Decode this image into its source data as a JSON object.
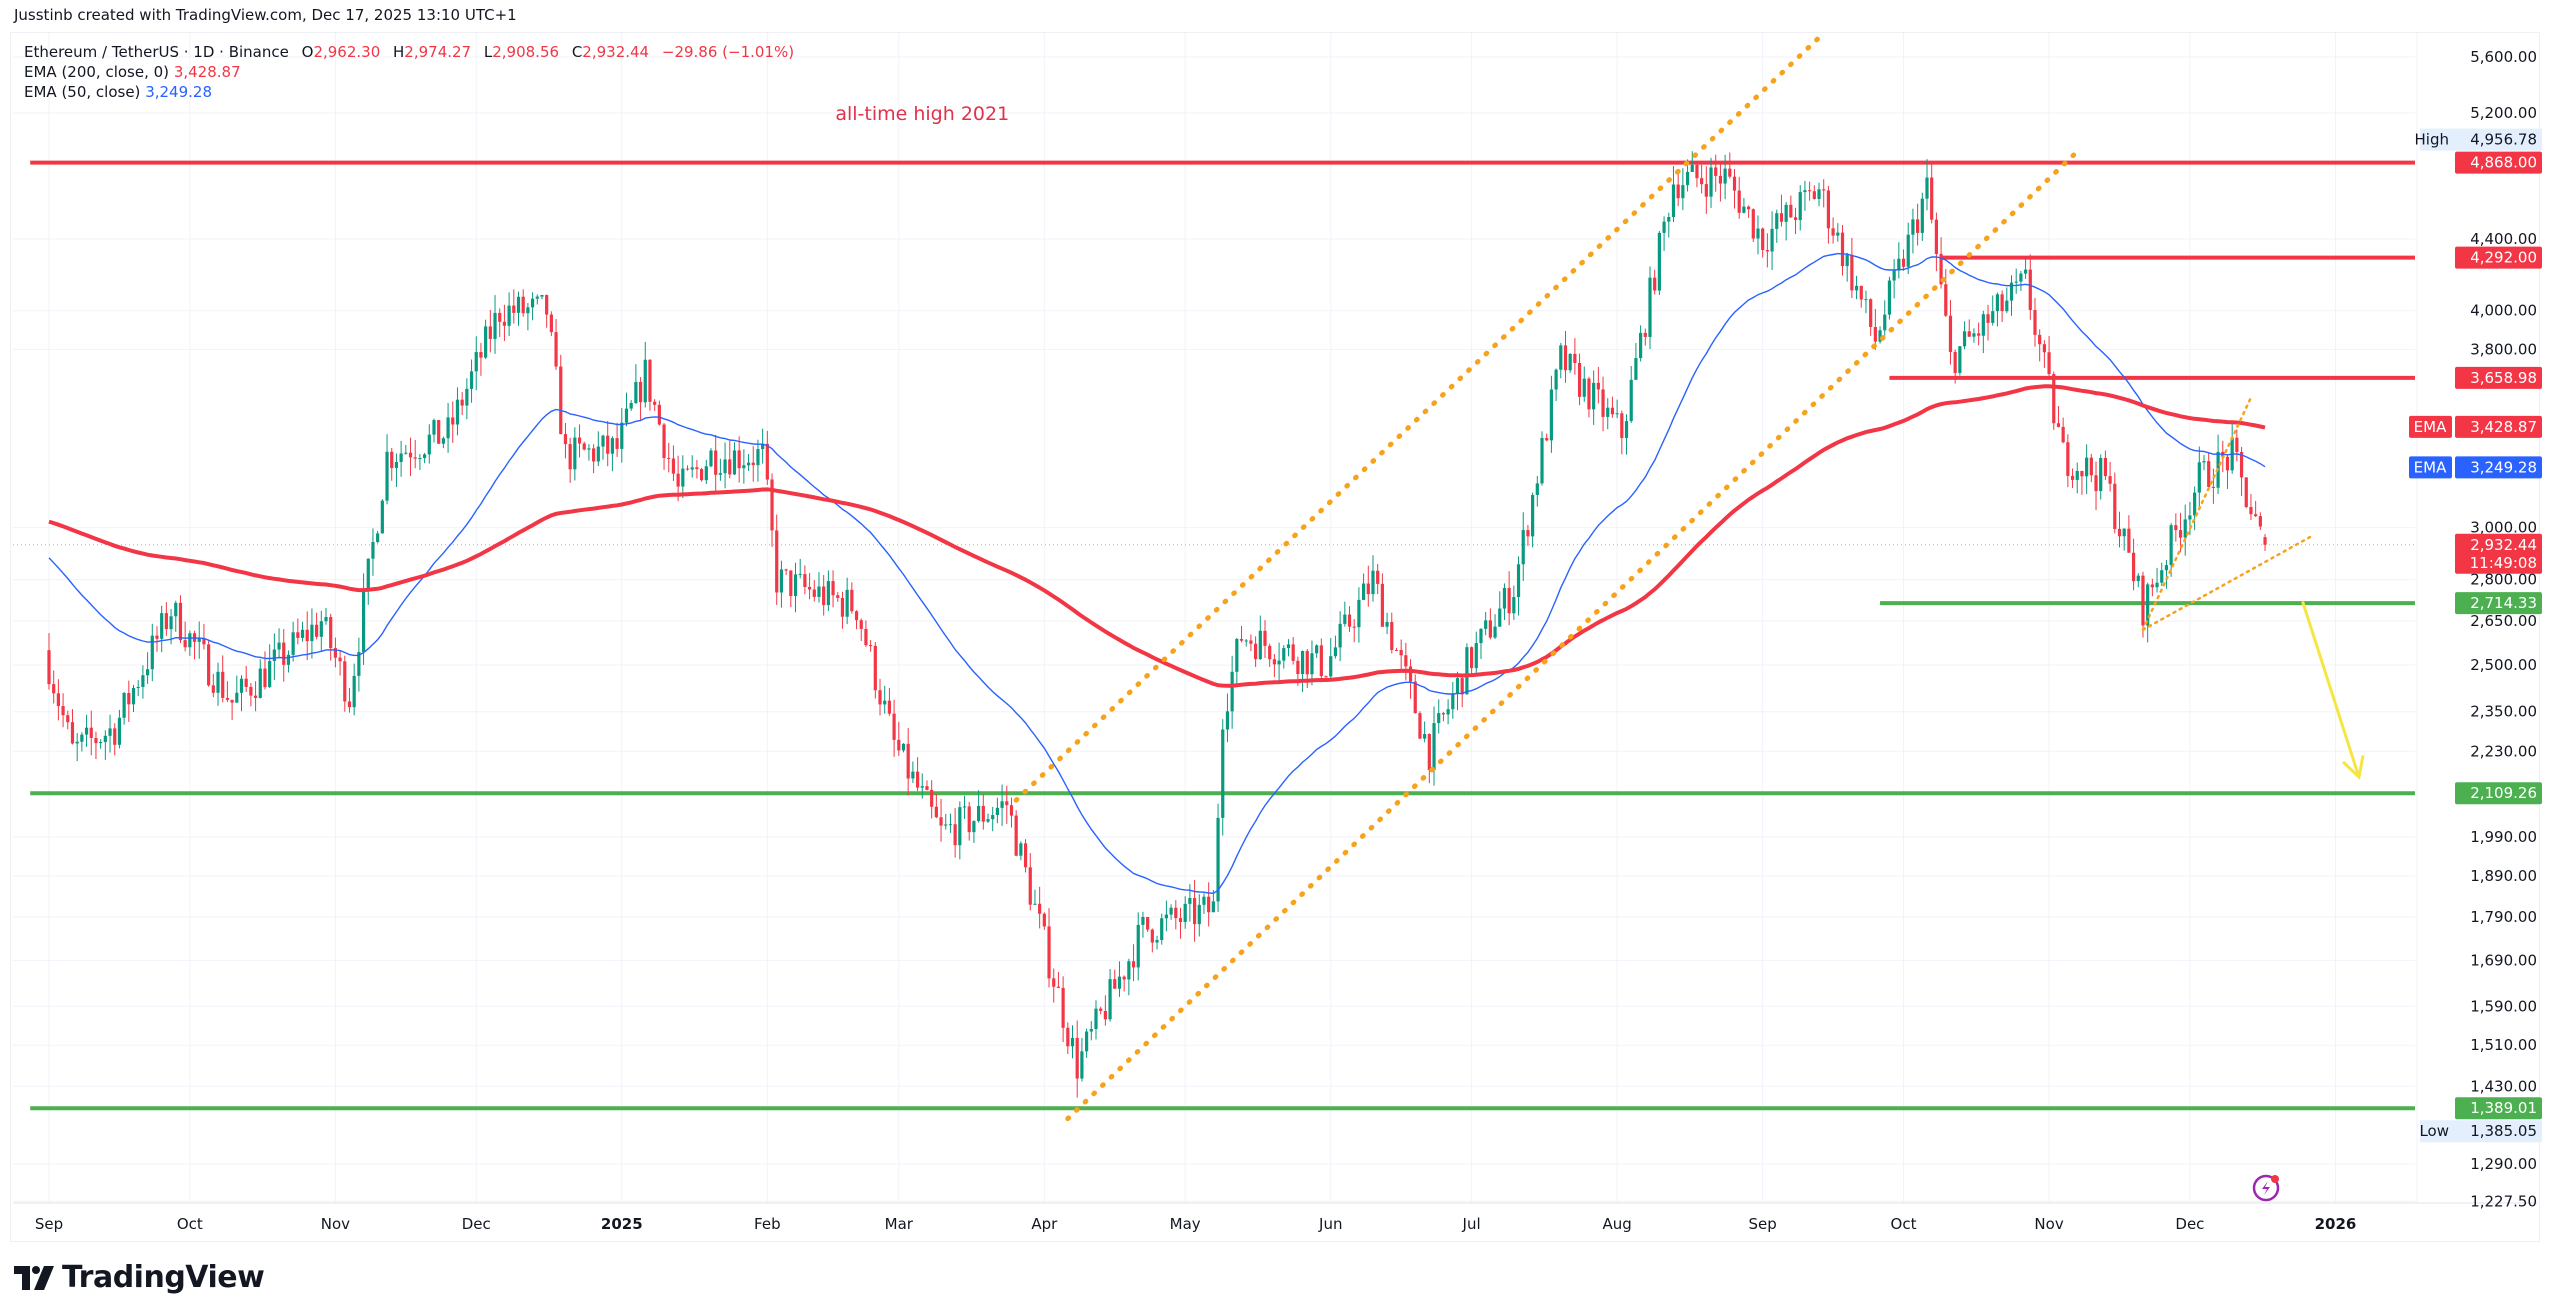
{
  "credit": "Jusstinb created with TradingView.com, Dec 17, 2025 13:10 UTC+1",
  "legend": {
    "symbol": "Ethereum / TetherUS · 1D · Binance",
    "o_label": "O",
    "o": "2,962.30",
    "h_label": "H",
    "h": "2,974.27",
    "l_label": "L",
    "l": "2,908.56",
    "c_label": "C",
    "c": "2,932.44",
    "change": "−29.86 (−1.01%)",
    "ema200_label": "EMA (200, close, 0)",
    "ema200_value": "3,428.87",
    "ema50_label": "EMA (50, close)",
    "ema50_value": "3,249.28"
  },
  "logo_text": "TradingView",
  "colors": {
    "up": "#089981",
    "down": "#f23645",
    "ema200": "#f23645",
    "ema50": "#2962ff",
    "res": "#f23645",
    "sup": "#4caf50",
    "channel": "#f7a21b",
    "arrow": "#f5e642"
  },
  "chart_data": {
    "type": "candlestick",
    "title": "Ethereum / TetherUS · 1D · Binance",
    "scale": "log",
    "ylim": [
      1227.5,
      5700
    ],
    "xlim": [
      "2024-08-28",
      "2026-02-01"
    ],
    "grid": true,
    "price_ticks": [
      "5,600.00",
      "5,200.00",
      "4,400.00",
      "4,000.00",
      "3,800.00",
      "3,000.00",
      "2,800.00",
      "2,650.00",
      "2,500.00",
      "2,350.00",
      "2,230.00",
      "1,990.00",
      "1,890.00",
      "1,790.00",
      "1,690.00",
      "1,590.00",
      "1,510.00",
      "1,430.00",
      "1,290.00",
      "1,227.50"
    ],
    "time_ticks": [
      {
        "label": "Sep",
        "date": "2024-09-01"
      },
      {
        "label": "Oct",
        "date": "2024-10-01"
      },
      {
        "label": "Nov",
        "date": "2024-11-01"
      },
      {
        "label": "Dec",
        "date": "2024-12-01"
      },
      {
        "label": "2025",
        "date": "2025-01-01",
        "bold": true
      },
      {
        "label": "Feb",
        "date": "2025-02-01"
      },
      {
        "label": "Mar",
        "date": "2025-03-01"
      },
      {
        "label": "Apr",
        "date": "2025-04-01"
      },
      {
        "label": "May",
        "date": "2025-05-01"
      },
      {
        "label": "Jun",
        "date": "2025-06-01"
      },
      {
        "label": "Jul",
        "date": "2025-07-01"
      },
      {
        "label": "Aug",
        "date": "2025-08-01"
      },
      {
        "label": "Sep",
        "date": "2025-09-01"
      },
      {
        "label": "Oct",
        "date": "2025-10-01"
      },
      {
        "label": "Nov",
        "date": "2025-11-01"
      },
      {
        "label": "Dec",
        "date": "2025-12-01"
      },
      {
        "label": "2026",
        "date": "2026-01-01",
        "bold": true
      }
    ],
    "close_anchors": [
      [
        "2024-09-01",
        2500
      ],
      [
        "2024-09-06",
        2230
      ],
      [
        "2024-09-15",
        2300
      ],
      [
        "2024-09-27",
        2690
      ],
      [
        "2024-10-10",
        2380
      ],
      [
        "2024-10-29",
        2650
      ],
      [
        "2024-11-04",
        2400
      ],
      [
        "2024-11-12",
        3300
      ],
      [
        "2024-11-25",
        3400
      ],
      [
        "2024-12-06",
        4000
      ],
      [
        "2024-12-16",
        4000
      ],
      [
        "2024-12-20",
        3300
      ],
      [
        "2024-12-31",
        3330
      ],
      [
        "2025-01-06",
        3680
      ],
      [
        "2025-01-13",
        3150
      ],
      [
        "2025-01-20",
        3300
      ],
      [
        "2025-01-31",
        3300
      ],
      [
        "2025-02-03",
        2800
      ],
      [
        "2025-02-20",
        2700
      ],
      [
        "2025-02-28",
        2250
      ],
      [
        "2025-03-10",
        2000
      ],
      [
        "2025-03-24",
        2080
      ],
      [
        "2025-04-08",
        1470
      ],
      [
        "2025-04-22",
        1760
      ],
      [
        "2025-05-07",
        1810
      ],
      [
        "2025-05-09",
        2350
      ],
      [
        "2025-05-13",
        2600
      ],
      [
        "2025-05-31",
        2500
      ],
      [
        "2025-06-10",
        2800
      ],
      [
        "2025-06-22",
        2230
      ],
      [
        "2025-06-30",
        2500
      ],
      [
        "2025-07-10",
        2770
      ],
      [
        "2025-07-20",
        3750
      ],
      [
        "2025-08-02",
        3400
      ],
      [
        "2025-08-13",
        4750
      ],
      [
        "2025-08-24",
        4780
      ],
      [
        "2025-09-01",
        4400
      ],
      [
        "2025-09-13",
        4700
      ],
      [
        "2025-09-25",
        3850
      ],
      [
        "2025-10-06",
        4700
      ],
      [
        "2025-10-11",
        3750
      ],
      [
        "2025-10-27",
        4150
      ],
      [
        "2025-11-04",
        3300
      ],
      [
        "2025-11-13",
        3200
      ],
      [
        "2025-11-21",
        2700
      ],
      [
        "2025-12-03",
        3200
      ],
      [
        "2025-12-10",
        3300
      ],
      [
        "2025-12-16",
        2962.3
      ]
    ],
    "last_candle": {
      "date": "2025-12-17",
      "open": 2962.3,
      "high": 2974.27,
      "low": 2908.56,
      "close": 2932.44
    },
    "ema_seeds": {
      "ema200": 3030,
      "ema50": 2900
    },
    "series": [
      {
        "name": "EMA (200, close, 0)",
        "value": 3428.87
      },
      {
        "name": "EMA (50, close)",
        "value": 3249.28
      }
    ],
    "levels": [
      {
        "price": 4868.0,
        "label": "4,868.00",
        "kind": "res",
        "from": "2024-08-28"
      },
      {
        "price": 4292.0,
        "label": "4,292.00",
        "kind": "res",
        "from": "2025-10-09"
      },
      {
        "price": 3658.98,
        "label": "3,658.98",
        "kind": "res",
        "from": "2025-09-28"
      },
      {
        "price": 2714.33,
        "label": "2,714.33",
        "kind": "sup",
        "from": "2025-09-26"
      },
      {
        "price": 2109.26,
        "label": "2,109.26",
        "kind": "sup",
        "from": "2024-08-28"
      },
      {
        "price": 1389.01,
        "label": "1,389.01",
        "kind": "sup",
        "from": "2024-08-28"
      }
    ],
    "high_marker": {
      "label": "High",
      "value": "4,956.78",
      "price": 4956.78
    },
    "low_marker": {
      "label": "Low",
      "value": "1,385.05",
      "price": 1385.05
    },
    "ema_badges": [
      {
        "label": "EMA",
        "value": "3,428.87",
        "price": 3428.87,
        "color": "#f23645"
      },
      {
        "label": "EMA",
        "value": "3,249.28",
        "price": 3249.28,
        "color": "#2962ff"
      }
    ],
    "last_price": {
      "value": "2,932.44",
      "countdown": "11:49:08",
      "price": 2932.44
    },
    "trendlines": [
      {
        "name": "channel-upper",
        "from": [
          "2025-03-26",
          2090
        ],
        "to": [
          "2025-09-14",
          5780
        ]
      },
      {
        "name": "channel-lower",
        "from": [
          "2025-04-06",
          1370
        ],
        "to": [
          "2025-11-07",
          4940
        ]
      },
      {
        "name": "wedge-lower",
        "from": [
          "2025-11-21",
          2620
        ],
        "to": [
          "2025-12-27",
          2967
        ]
      },
      {
        "name": "wedge-upper",
        "from": [
          "2025-11-21",
          2620
        ],
        "to": [
          "2025-12-14",
          3565
        ]
      }
    ],
    "arrow": {
      "from": [
        "2025-12-25",
        2720
      ],
      "to": [
        "2026-01-06",
        2155
      ]
    },
    "annotations": [
      {
        "text": "all-time high 2021",
        "date": "2025-03-06",
        "price": 5150
      }
    ]
  }
}
